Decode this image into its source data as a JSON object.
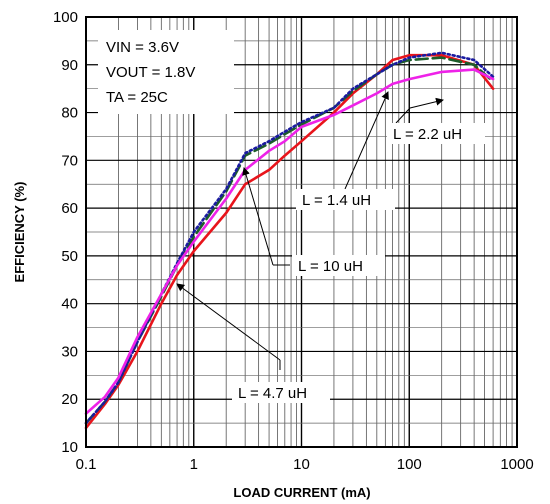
{
  "chart_data": {
    "type": "line",
    "xlabel": "LOAD CURRENT (mA)",
    "ylabel": "EFFICIENCY (%)",
    "x_scale": "log",
    "xlim": [
      0.1,
      1000
    ],
    "ylim": [
      10,
      100
    ],
    "grid": true,
    "x_tick_labels": [
      "0.1",
      "1",
      "10",
      "100",
      "1000"
    ],
    "y_tick_labels": [
      "10",
      "20",
      "30",
      "40",
      "50",
      "60",
      "70",
      "80",
      "90",
      "100"
    ],
    "conditions": [
      "VIN = 3.6V",
      "VOUT = 1.8V",
      "TA = 25C"
    ],
    "series": [
      {
        "name": "L = 10 uH",
        "color": "#e8141b",
        "style": "solid",
        "x": [
          0.1,
          0.15,
          0.2,
          0.3,
          0.5,
          0.7,
          1,
          2,
          3,
          5,
          7,
          10,
          20,
          30,
          50,
          70,
          100,
          200,
          400,
          600
        ],
        "y": [
          14,
          19,
          23,
          30,
          40,
          46,
          51,
          59,
          65,
          68,
          71,
          74,
          80,
          84,
          88,
          91,
          92,
          92,
          90,
          85
        ]
      },
      {
        "name": "L = 4.7 uH",
        "color": "#1a1aa0",
        "style": "dotted",
        "x": [
          0.1,
          0.15,
          0.2,
          0.3,
          0.5,
          0.7,
          1,
          2,
          3,
          5,
          7,
          10,
          20,
          30,
          50,
          70,
          100,
          200,
          400,
          600
        ],
        "y": [
          15,
          19.5,
          23.5,
          32,
          42,
          48.5,
          55,
          64,
          71.5,
          74,
          76,
          78,
          81,
          85,
          88,
          90,
          91.5,
          92.5,
          91,
          87.5
        ]
      },
      {
        "name": "L = 1.4 uH",
        "color": "#1d5c2a",
        "style": "dashed",
        "x": [
          0.1,
          0.15,
          0.2,
          0.3,
          0.5,
          0.7,
          1,
          2,
          3,
          5,
          7,
          10,
          20,
          30,
          50,
          70,
          100,
          200,
          400,
          600
        ],
        "y": [
          15,
          19.5,
          23.5,
          32,
          41.5,
          48,
          54,
          63.5,
          71,
          73.5,
          75.5,
          77.5,
          81,
          84.5,
          88,
          90,
          91,
          91.5,
          90,
          86.5
        ]
      },
      {
        "name": "L = 2.2 uH",
        "color": "#ee22e8",
        "style": "solid",
        "x": [
          0.1,
          0.15,
          0.2,
          0.3,
          0.5,
          0.7,
          1,
          2,
          3,
          5,
          7,
          10,
          20,
          30,
          50,
          70,
          100,
          200,
          400,
          600
        ],
        "y": [
          17,
          20.5,
          24.5,
          33,
          42,
          48,
          53,
          62,
          68,
          72,
          74,
          77,
          79.5,
          81.5,
          84,
          86,
          87,
          88.5,
          89,
          87
        ]
      }
    ],
    "annotations": [
      "L = 2.2 uH",
      "L = 1.4 uH",
      "L = 10 uH",
      "L = 4.7 uH"
    ]
  }
}
